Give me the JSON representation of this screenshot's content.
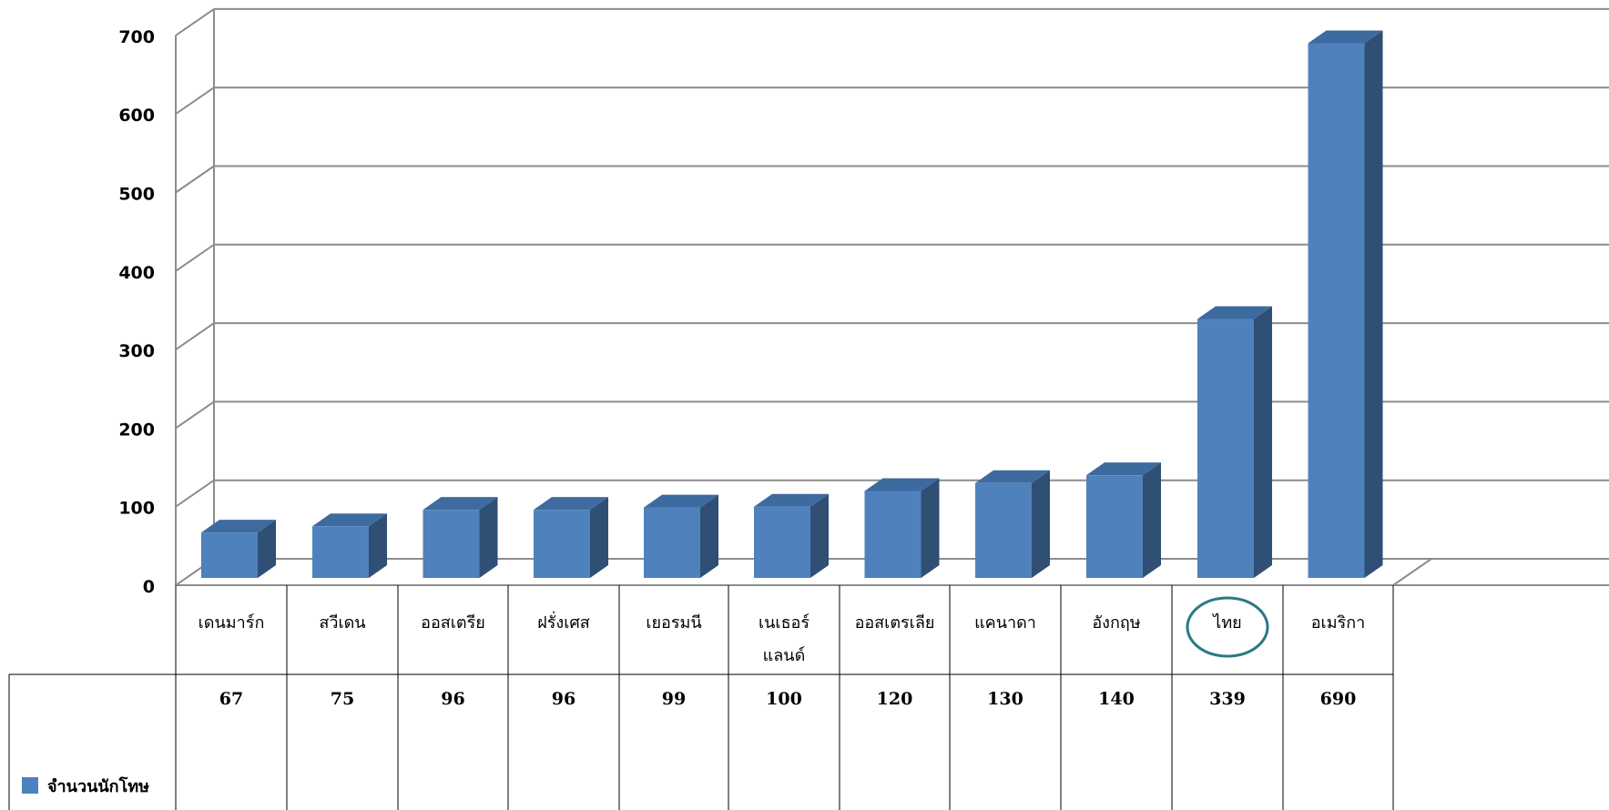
{
  "chart_data": {
    "type": "bar",
    "categories": [
      "เดนมาร์ก",
      "สวีเดน",
      "ออสเตรีย",
      "ฝรั่งเศส",
      "เยอรมนี",
      "เนเธอร์แลนด์",
      "ออสเตรเลีย",
      "แคนาดา",
      "อังกฤษ",
      "ไทย",
      "อเมริกา"
    ],
    "category_lines": [
      [
        "เดนมาร์ก"
      ],
      [
        "สวีเดน"
      ],
      [
        "ออสเตรีย"
      ],
      [
        "ฝรั่งเศส"
      ],
      [
        "เยอรมนี"
      ],
      [
        "เนเธอร์",
        "แลนด์"
      ],
      [
        "ออสเตรเลีย"
      ],
      [
        "แคนาดา"
      ],
      [
        "อังกฤษ"
      ],
      [
        "ไทย"
      ],
      [
        "อเมริกา"
      ]
    ],
    "series": [
      {
        "name": "จำนวนนักโทษ",
        "values": [
          67,
          75,
          96,
          96,
          99,
          100,
          120,
          130,
          140,
          339,
          690
        ]
      }
    ],
    "value_labels": [
      "67",
      "75",
      "96",
      "96",
      "99",
      "100",
      "120",
      "130",
      "140",
      "339",
      "690"
    ],
    "yticks": [
      "0",
      "100",
      "200",
      "300",
      "400",
      "500",
      "600",
      "700"
    ],
    "ylim": [
      0,
      700
    ],
    "highlight_category": "ไทย",
    "grid": true,
    "style": "3d-column with data table",
    "colors": {
      "bar_front": "#4f81bd",
      "bar_side": "#2f4f75",
      "bar_top": "#3d6b9f",
      "grid": "#8c8c8c",
      "highlight_ring": "#2b7a85"
    }
  }
}
